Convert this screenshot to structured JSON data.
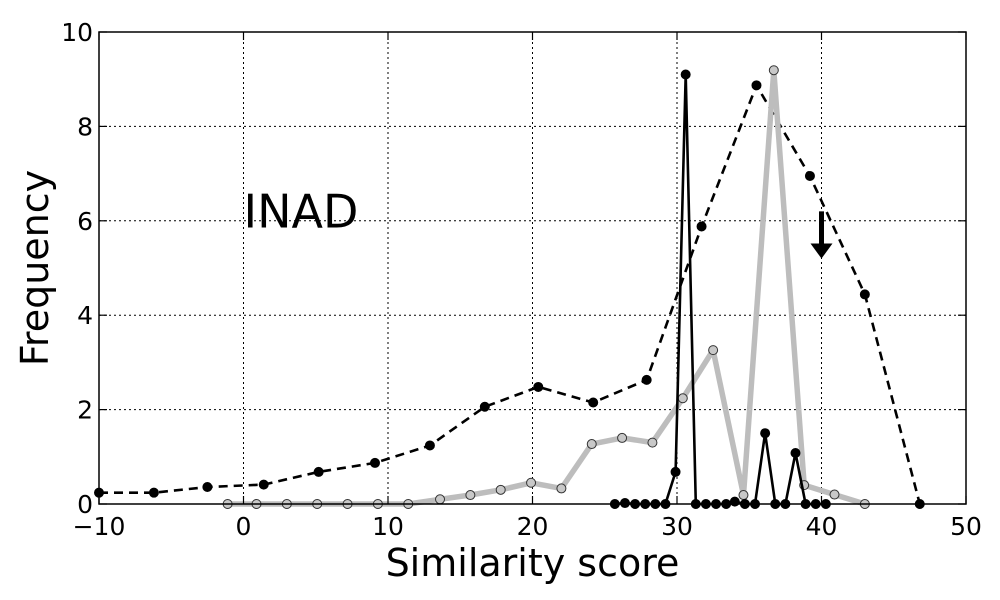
{
  "chart_data": {
    "type": "line",
    "title": "",
    "xlabel": "Similarity score",
    "ylabel": "Frequency",
    "xlim": [
      -10,
      50
    ],
    "ylim": [
      0,
      10
    ],
    "xticks": [
      -10,
      0,
      10,
      20,
      30,
      40,
      50
    ],
    "yticks": [
      0,
      2,
      4,
      6,
      8,
      10
    ],
    "grid": true,
    "annotation": {
      "text": "INAD",
      "x": 0,
      "y": 6.2
    },
    "arrow": {
      "x": 40,
      "y_from": 6.2,
      "y_to": 5.2
    },
    "series": [
      {
        "style": "dashed-black",
        "x": [
          -10,
          -6.2,
          -2.5,
          1.4,
          5.2,
          9.1,
          12.9,
          16.7,
          20.4,
          24.2,
          27.9,
          31.7,
          35.5,
          39.2,
          43,
          46.8
        ],
        "y": [
          0.24,
          0.24,
          0.36,
          0.41,
          0.68,
          0.87,
          1.24,
          2.06,
          2.48,
          2.15,
          2.63,
          5.88,
          8.87,
          6.95,
          4.44,
          0
        ]
      },
      {
        "style": "gray-thick",
        "x": [
          -1.1,
          0.9,
          3,
          5.1,
          7.2,
          9.3,
          11.4,
          13.6,
          15.7,
          17.8,
          19.9,
          22,
          24.1,
          26.2,
          28.3,
          30.4,
          32.5,
          34.6,
          36.7,
          38.8,
          40.9,
          43
        ],
        "y": [
          0,
          0,
          0,
          0,
          0,
          0,
          0,
          0.1,
          0.19,
          0.3,
          0.45,
          0.33,
          1.27,
          1.4,
          1.3,
          2.24,
          3.26,
          0.19,
          9.19,
          0.4,
          0.2,
          0
        ]
      },
      {
        "style": "solid-black",
        "x": [
          25.7,
          26.4,
          27.1,
          27.8,
          28.5,
          29.2,
          29.9,
          30.6,
          31.3,
          32,
          32.7,
          33.4,
          34,
          34.7,
          35.4,
          36.1,
          36.8,
          37.5,
          38.2,
          38.9,
          39.6,
          40.3
        ],
        "y": [
          0,
          0.02,
          0,
          0,
          0,
          0,
          0.68,
          9.1,
          0,
          0,
          0,
          0,
          0.05,
          0,
          0,
          1.5,
          0,
          0,
          1.08,
          0,
          0,
          0
        ]
      }
    ]
  }
}
